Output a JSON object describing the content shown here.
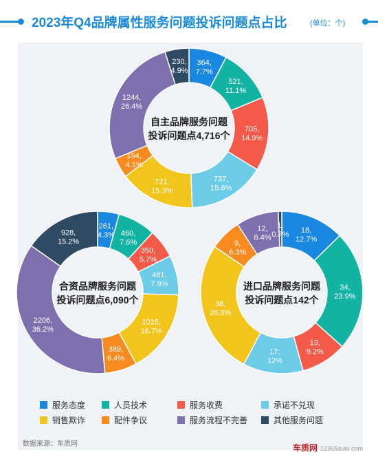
{
  "header": {
    "title": "2023年Q4品牌属性服务问题投诉问题点占比",
    "unit": "(单位：个)"
  },
  "colors": {
    "accent": "#1a8ad8",
    "panel_bg": "#eff2f6"
  },
  "chart_data": [
    {
      "type": "pie",
      "donut": true,
      "center_label": [
        "自主品牌服务问题",
        "投诉问题点4,716个"
      ],
      "categories": [
        "服务态度",
        "人员技术",
        "服务收费",
        "承诺不兑现",
        "销售欺诈",
        "配件争议",
        "服务流程不完善",
        "其他服务问题"
      ],
      "values": [
        364,
        521,
        705,
        737,
        721,
        194,
        1244,
        230
      ],
      "percent_labels": [
        "7.7%",
        "11.1%",
        "14.9%",
        "15.6%",
        "15.3%",
        "4.1%",
        "26.4%",
        "4.9%"
      ],
      "value_labels": [
        "364,",
        "521,",
        "705,",
        "737,",
        "721,",
        "194,",
        "1244,",
        "230,"
      ]
    },
    {
      "type": "pie",
      "donut": true,
      "center_label": [
        "合资品牌服务问题",
        "投诉问题点6,090个"
      ],
      "categories": [
        "服务态度",
        "人员技术",
        "服务收费",
        "承诺不兑现",
        "销售欺诈",
        "配件争议",
        "服务流程不完善",
        "其他服务问题"
      ],
      "values": [
        261,
        460,
        350,
        481,
        1015,
        389,
        2206,
        928
      ],
      "percent_labels": [
        "4.3%",
        "7.6%",
        "5.7%",
        "7.9%",
        "16.7%",
        "6.4%",
        "36.2%",
        "15.2%"
      ],
      "value_labels": [
        "261,",
        "460,",
        "350,",
        "481,",
        "1015,",
        "389,",
        "2206,",
        "928,"
      ]
    },
    {
      "type": "pie",
      "donut": true,
      "center_label": [
        "进口品牌服务问题",
        "投诉问题点142个"
      ],
      "categories": [
        "服务态度",
        "人员技术",
        "服务收费",
        "承诺不兑现",
        "销售欺诈",
        "配件争议",
        "服务流程不完善",
        "其他服务问题"
      ],
      "values": [
        18,
        34,
        13,
        17,
        38,
        9,
        12,
        1
      ],
      "percent_labels": [
        "12.7%",
        "23.9%",
        "9.2%",
        "12%",
        "26.8%",
        "6.3%",
        "8.4%",
        "0.7%"
      ],
      "value_labels": [
        "18,",
        "34,",
        "13,",
        "17,",
        "38,",
        "9,",
        "12,",
        "1,"
      ]
    }
  ],
  "legend": {
    "items": [
      {
        "label": "服务态度",
        "color": "#1a88e0"
      },
      {
        "label": "人员技术",
        "color": "#12b3a2"
      },
      {
        "label": "服务收费",
        "color": "#f35a4a"
      },
      {
        "label": "承诺不兑现",
        "color": "#6ccbe6"
      },
      {
        "label": "销售欺诈",
        "color": "#f1c51c"
      },
      {
        "label": "配件争议",
        "color": "#f78b1f"
      },
      {
        "label": "服务流程不完善",
        "color": "#7e6fae"
      },
      {
        "label": "其他服务问题",
        "color": "#2f4a63"
      }
    ]
  },
  "footer": {
    "source": "数据来源：车质网",
    "watermark_logo": "车质网",
    "watermark_url": "12365auto.com"
  }
}
